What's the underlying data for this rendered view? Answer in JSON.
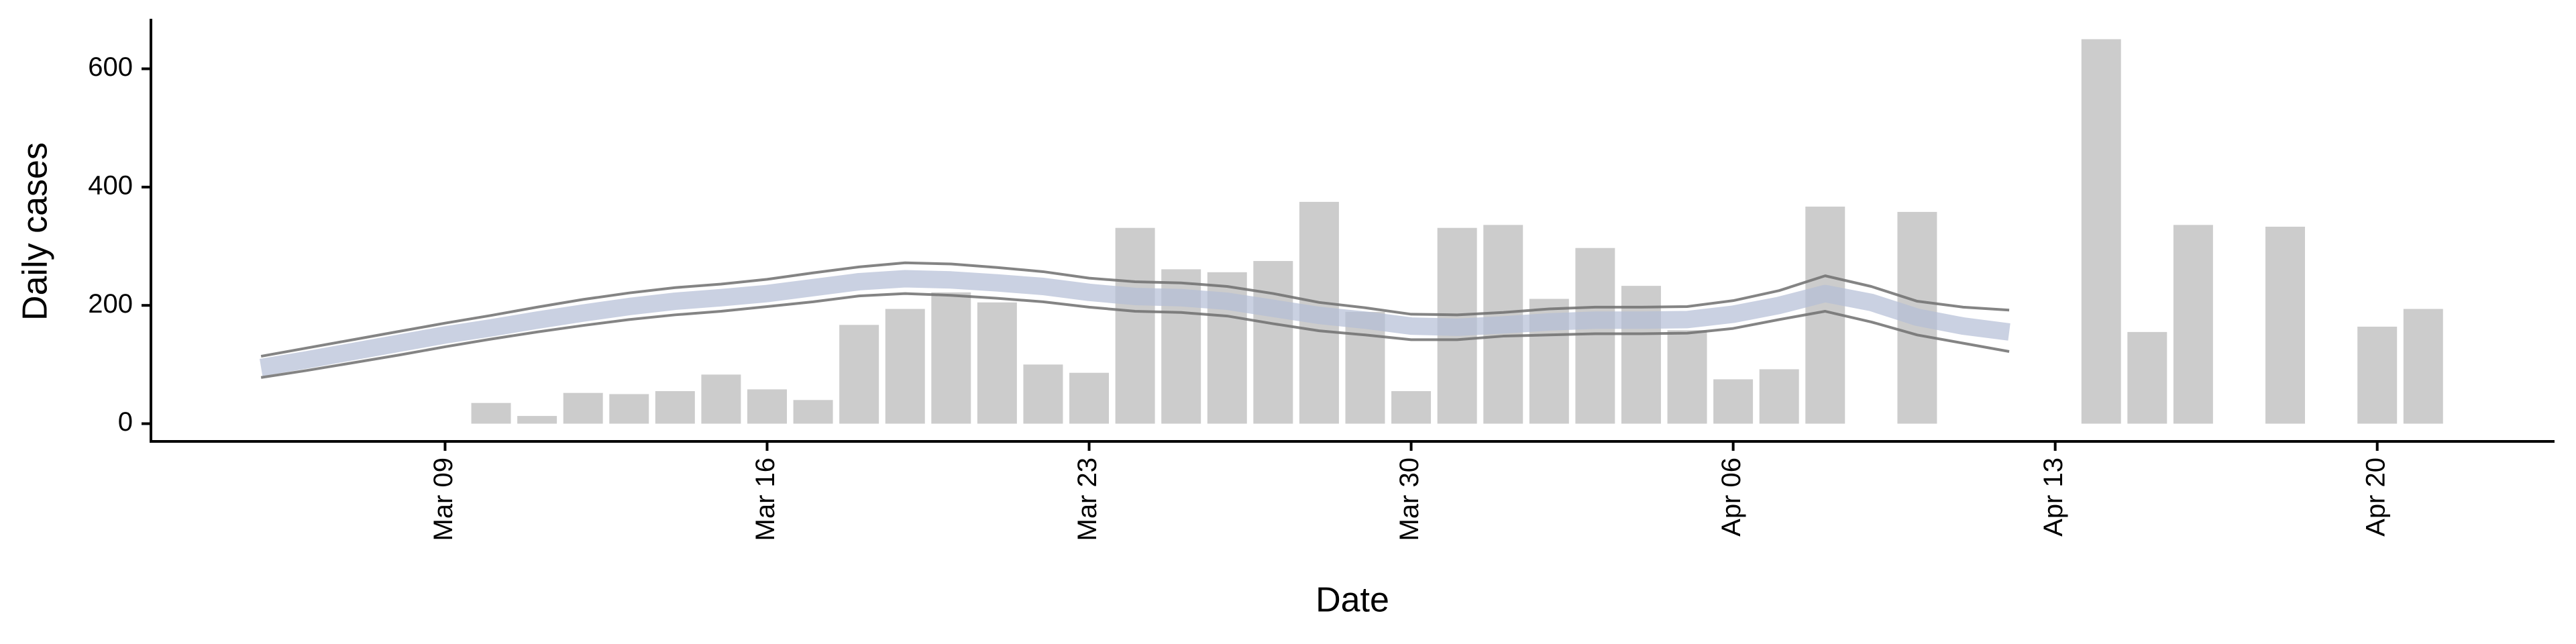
{
  "chart_data": {
    "type": "bar",
    "x_label": "Date",
    "y_label": "Daily cases",
    "x": [
      "03-05",
      "03-06",
      "03-07",
      "03-08",
      "03-09",
      "03-10",
      "03-11",
      "03-12",
      "03-13",
      "03-14",
      "03-15",
      "03-16",
      "03-17",
      "03-18",
      "03-19",
      "03-20",
      "03-21",
      "03-22",
      "03-23",
      "03-24",
      "03-25",
      "03-26",
      "03-27",
      "03-28",
      "03-29",
      "03-30",
      "03-31",
      "04-01",
      "04-02",
      "04-03",
      "04-04",
      "04-05",
      "04-06",
      "04-07",
      "04-08",
      "04-09",
      "04-10",
      "04-11",
      "04-12",
      "04-13",
      "04-14",
      "04-15",
      "04-16",
      "04-17",
      "04-18",
      "04-19",
      "04-20",
      "04-21"
    ],
    "bars": {
      "color": "#cccccc",
      "values": [
        null,
        null,
        null,
        null,
        null,
        35,
        13,
        52,
        50,
        55,
        83,
        58,
        40,
        167,
        194,
        222,
        205,
        100,
        86,
        331,
        261,
        256,
        275,
        375,
        189,
        55,
        331,
        336,
        211,
        297,
        233,
        158,
        75,
        92,
        367,
        null,
        358,
        null,
        null,
        null,
        650,
        155,
        336,
        null,
        333,
        null,
        164,
        194
      ]
    },
    "lines": [
      {
        "color": "#b4bdd6",
        "values": [
          95,
          108,
          122,
          136,
          150,
          162,
          175,
          187,
          198,
          207,
          213,
          220,
          230,
          240,
          245,
          243,
          238,
          232,
          222,
          215,
          213,
          207,
          195,
          183,
          175,
          165,
          163,
          167,
          172,
          175,
          175,
          176,
          185,
          200,
          220,
          205,
          180,
          165,
          155,
          null,
          null,
          null,
          null,
          null,
          null,
          null,
          null,
          null
        ]
      },
      {
        "color": "#6e6e6e",
        "values": [
          114,
          128,
          142,
          156,
          170,
          183,
          197,
          210,
          221,
          230,
          236,
          244,
          255,
          265,
          272,
          270,
          264,
          257,
          246,
          240,
          238,
          232,
          220,
          205,
          196,
          185,
          184,
          188,
          194,
          197,
          197,
          198,
          208,
          225,
          250,
          232,
          207,
          197,
          192,
          null,
          null,
          null,
          null,
          null,
          null,
          null,
          null,
          null
        ]
      },
      {
        "color": "#6e6e6e",
        "values": [
          78,
          90,
          103,
          116,
          130,
          143,
          155,
          166,
          176,
          184,
          190,
          198,
          206,
          216,
          220,
          217,
          212,
          206,
          197,
          190,
          188,
          182,
          169,
          157,
          150,
          142,
          142,
          148,
          150,
          152,
          152,
          153,
          161,
          176,
          190,
          172,
          150,
          136,
          122,
          null,
          null,
          null,
          null,
          null,
          null,
          null,
          null,
          null
        ]
      }
    ],
    "xlim": [
      "03-03",
      "04-24"
    ],
    "xticks": [
      {
        "value": "03-09",
        "label": "Mar 09"
      },
      {
        "value": "03-16",
        "label": "Mar 16"
      },
      {
        "value": "03-23",
        "label": "Mar 23"
      },
      {
        "value": "03-30",
        "label": "Mar 30"
      },
      {
        "value": "04-06",
        "label": "Apr 06"
      },
      {
        "value": "04-13",
        "label": "Apr 13"
      },
      {
        "value": "04-20",
        "label": "Apr 20"
      }
    ],
    "ylim": [
      -30,
      680
    ],
    "yticks": [
      0,
      200,
      400,
      600
    ]
  }
}
